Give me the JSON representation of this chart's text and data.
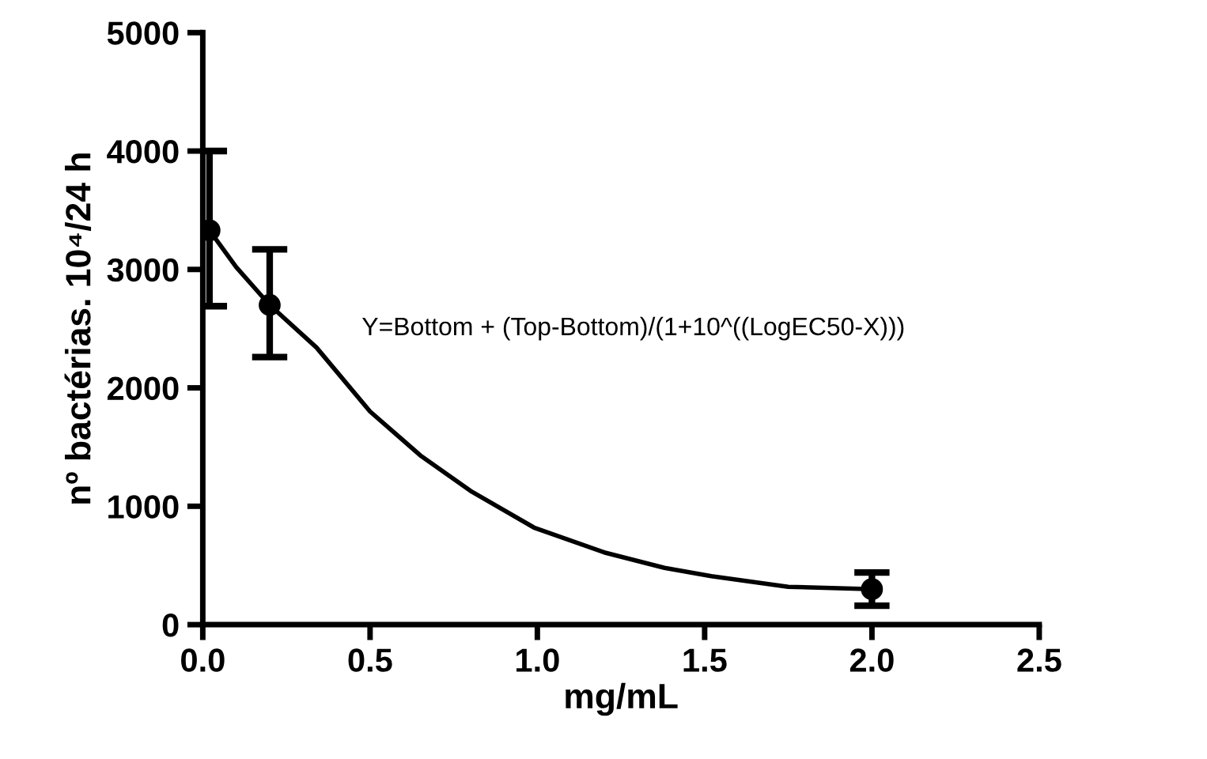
{
  "chart_data": {
    "type": "scatter",
    "xlabel": "mg/mL",
    "ylabel": "nº bactérias. 10⁴/24 h",
    "annotations": [
      "Y=Bottom + (Top-Bottom)/(1+10^((LogEC50-X)))"
    ],
    "xlim": [
      0,
      2.5
    ],
    "xticks": [
      {
        "value": 0,
        "label": "0.0"
      },
      0.5,
      {
        "value": 1,
        "label": "1.0"
      },
      1.5,
      {
        "value": 2,
        "label": "2.0"
      },
      2.5
    ],
    "ylim": [
      0,
      5000
    ],
    "yticks": [
      0,
      1000,
      2000,
      3000,
      4000,
      5000
    ],
    "grid": false,
    "legend": false,
    "series": [
      {
        "color": "#000000",
        "marker": "circle",
        "x": [
          0.02,
          0.2,
          2.0
        ],
        "values": [
          3330,
          2700,
          300
        ],
        "errors": [
          [
            2690,
            4000
          ],
          [
            2260,
            3170
          ],
          [
            160,
            440
          ]
        ]
      },
      {
        "type": "line",
        "color": "#000000",
        "marker": "none",
        "line_style": "solid",
        "x": [
          0.02,
          0.1,
          0.2,
          0.34,
          0.5,
          0.65,
          0.8,
          0.99,
          1.2,
          1.38,
          1.52,
          1.75,
          2.0
        ],
        "values": [
          3330,
          3020,
          2700,
          2340,
          1800,
          1430,
          1130,
          820,
          610,
          480,
          410,
          320,
          300
        ]
      }
    ]
  }
}
